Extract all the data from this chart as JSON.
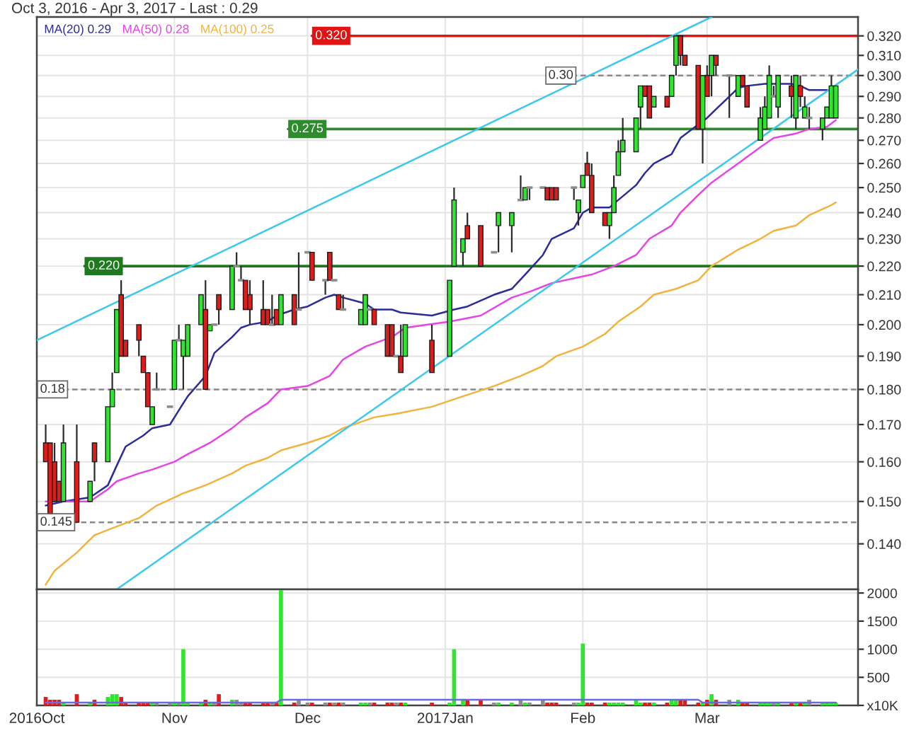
{
  "chart_data": [
    {
      "type": "candlestick",
      "title": "Oct 3, 2016 - Apr 3, 2017 - Last : 0.29",
      "x": [
        "2016-10-03",
        "2016-10-04",
        "2016-10-05",
        "2016-10-06",
        "2016-10-07",
        "2016-10-10",
        "2016-10-13",
        "2016-10-14",
        "2016-10-17",
        "2016-10-18",
        "2016-10-19",
        "2016-10-20",
        "2016-10-21",
        "2016-10-24",
        "2016-10-25",
        "2016-10-26",
        "2016-10-27",
        "2016-10-28",
        "2016-10-31",
        "2016-11-01",
        "2016-11-02",
        "2016-11-03",
        "2016-11-04",
        "2016-11-07",
        "2016-11-08",
        "2016-11-09",
        "2016-11-10",
        "2016-11-11",
        "2016-11-14",
        "2016-11-15",
        "2016-11-16",
        "2016-11-17",
        "2016-11-18",
        "2016-11-21",
        "2016-11-22",
        "2016-11-23",
        "2016-11-24",
        "2016-11-25",
        "2016-11-28",
        "2016-11-29",
        "2016-12-01",
        "2016-12-02",
        "2016-12-05",
        "2016-12-06",
        "2016-12-07",
        "2016-12-08",
        "2016-12-09",
        "2016-12-13",
        "2016-12-14",
        "2016-12-15",
        "2016-12-16",
        "2016-12-19",
        "2016-12-20",
        "2016-12-21",
        "2016-12-22",
        "2016-12-23",
        "2016-12-29",
        "2017-01-02",
        "2017-01-03",
        "2017-01-05",
        "2017-01-06",
        "2017-01-09",
        "2017-01-12",
        "2017-01-13",
        "2017-01-16",
        "2017-01-18",
        "2017-01-19",
        "2017-01-20",
        "2017-01-23",
        "2017-01-24",
        "2017-01-25",
        "2017-01-26",
        "2017-01-30",
        "2017-01-31",
        "2017-02-01",
        "2017-02-02",
        "2017-02-03",
        "2017-02-06",
        "2017-02-07",
        "2017-02-08",
        "2017-02-09",
        "2017-02-10",
        "2017-02-13",
        "2017-02-14",
        "2017-02-15",
        "2017-02-16",
        "2017-02-17",
        "2017-02-20",
        "2017-02-21",
        "2017-02-22",
        "2017-02-23",
        "2017-02-24",
        "2017-02-27",
        "2017-02-28",
        "2017-03-01",
        "2017-03-02",
        "2017-03-03",
        "2017-03-06",
        "2017-03-08",
        "2017-03-09",
        "2017-03-10",
        "2017-03-13",
        "2017-03-14",
        "2017-03-15",
        "2017-03-16",
        "2017-03-17",
        "2017-03-20",
        "2017-03-21",
        "2017-03-22",
        "2017-03-23",
        "2017-03-24",
        "2017-03-27",
        "2017-03-28",
        "2017-03-29",
        "2017-03-30"
      ],
      "ohlc": [
        [
          0.165,
          0.17,
          0.16,
          0.16
        ],
        [
          0.165,
          0.165,
          0.147,
          0.147
        ],
        [
          0.16,
          0.165,
          0.15,
          0.15
        ],
        [
          0.155,
          0.155,
          0.15,
          0.15
        ],
        [
          0.15,
          0.17,
          0.15,
          0.165
        ],
        [
          0.16,
          0.17,
          0.145,
          0.145
        ],
        [
          0.15,
          0.155,
          0.15,
          0.155
        ],
        [
          0.165,
          0.165,
          0.155,
          0.16
        ],
        [
          0.16,
          0.175,
          0.16,
          0.175
        ],
        [
          0.175,
          0.185,
          0.175,
          0.18
        ],
        [
          0.185,
          0.205,
          0.185,
          0.205
        ],
        [
          0.21,
          0.215,
          0.19,
          0.19
        ],
        [
          0.195,
          0.195,
          0.19,
          0.19
        ],
        [
          0.2,
          0.2,
          0.19,
          0.195
        ],
        [
          0.19,
          0.19,
          0.185,
          0.185
        ],
        [
          0.185,
          0.185,
          0.175,
          0.175
        ],
        [
          0.17,
          0.175,
          0.17,
          0.175
        ],
        [
          0.18,
          0.185,
          0.18,
          0.18
        ],
        [
          0.175,
          0.175,
          0.175,
          0.175
        ],
        [
          0.18,
          0.195,
          0.18,
          0.195
        ],
        [
          0.195,
          0.2,
          0.195,
          0.195
        ],
        [
          0.19,
          0.195,
          0.18,
          0.195
        ],
        [
          0.19,
          0.2,
          0.19,
          0.2
        ],
        [
          0.2,
          0.21,
          0.2,
          0.21
        ],
        [
          0.205,
          0.215,
          0.18,
          0.18
        ],
        [
          0.198,
          0.2,
          0.198,
          0.2
        ],
        [
          0.2,
          0.2,
          0.2,
          0.2
        ],
        [
          0.21,
          0.21,
          0.2,
          0.205
        ],
        [
          0.205,
          0.22,
          0.205,
          0.22
        ],
        [
          0.22,
          0.225,
          0.22,
          0.22
        ],
        [
          0.215,
          0.22,
          0.215,
          0.215
        ],
        [
          0.215,
          0.215,
          0.205,
          0.205
        ],
        [
          0.21,
          0.215,
          0.2,
          0.205
        ],
        [
          0.205,
          0.215,
          0.2,
          0.2
        ],
        [
          0.205,
          0.205,
          0.2,
          0.2
        ],
        [
          0.2,
          0.21,
          0.2,
          0.2
        ],
        [
          0.205,
          0.205,
          0.2,
          0.2
        ],
        [
          0.2,
          0.21,
          0.2,
          0.21
        ],
        [
          0.21,
          0.21,
          0.2,
          0.2
        ],
        [
          0.205,
          0.225,
          0.205,
          0.205
        ],
        [
          0.225,
          0.225,
          0.225,
          0.225
        ],
        [
          0.225,
          0.225,
          0.215,
          0.215
        ],
        [
          0.215,
          0.215,
          0.21,
          0.215
        ],
        [
          0.225,
          0.225,
          0.215,
          0.215
        ],
        [
          0.215,
          0.215,
          0.215,
          0.215
        ],
        [
          0.21,
          0.21,
          0.205,
          0.205
        ],
        [
          0.205,
          0.21,
          0.205,
          0.205
        ],
        [
          0.2,
          0.205,
          0.2,
          0.205
        ],
        [
          0.2,
          0.21,
          0.2,
          0.21
        ],
        [
          0.205,
          0.205,
          0.205,
          0.205
        ],
        [
          0.205,
          0.205,
          0.2,
          0.2
        ],
        [
          0.2,
          0.2,
          0.19,
          0.19
        ],
        [
          0.2,
          0.2,
          0.19,
          0.19
        ],
        [
          0.19,
          0.19,
          0.19,
          0.19
        ],
        [
          0.19,
          0.2,
          0.185,
          0.185
        ],
        [
          0.19,
          0.2,
          0.19,
          0.2
        ],
        [
          0.195,
          0.2,
          0.185,
          0.185
        ],
        [
          0.19,
          0.215,
          0.19,
          0.215
        ],
        [
          0.22,
          0.25,
          0.22,
          0.245
        ],
        [
          0.225,
          0.23,
          0.22,
          0.23
        ],
        [
          0.235,
          0.24,
          0.23,
          0.23
        ],
        [
          0.235,
          0.235,
          0.22,
          0.22
        ],
        [
          0.225,
          0.225,
          0.225,
          0.225
        ],
        [
          0.235,
          0.24,
          0.225,
          0.24
        ],
        [
          0.235,
          0.24,
          0.225,
          0.24
        ],
        [
          0.245,
          0.255,
          0.245,
          0.245
        ],
        [
          0.245,
          0.25,
          0.245,
          0.25
        ],
        [
          0.25,
          0.25,
          0.245,
          0.25
        ],
        [
          0.25,
          0.25,
          0.25,
          0.25
        ],
        [
          0.25,
          0.25,
          0.245,
          0.245
        ],
        [
          0.25,
          0.25,
          0.245,
          0.245
        ],
        [
          0.25,
          0.25,
          0.245,
          0.245
        ],
        [
          0.25,
          0.25,
          0.245,
          0.25
        ],
        [
          0.24,
          0.245,
          0.235,
          0.245
        ],
        [
          0.25,
          0.255,
          0.25,
          0.255
        ],
        [
          0.26,
          0.265,
          0.255,
          0.255
        ],
        [
          0.255,
          0.26,
          0.24,
          0.24
        ],
        [
          0.24,
          0.24,
          0.235,
          0.235
        ],
        [
          0.235,
          0.24,
          0.23,
          0.24
        ],
        [
          0.24,
          0.255,
          0.24,
          0.25
        ],
        [
          0.255,
          0.27,
          0.255,
          0.265
        ],
        [
          0.265,
          0.28,
          0.265,
          0.27
        ],
        [
          0.265,
          0.28,
          0.265,
          0.28
        ],
        [
          0.285,
          0.295,
          0.275,
          0.295
        ],
        [
          0.295,
          0.295,
          0.29,
          0.29
        ],
        [
          0.295,
          0.295,
          0.28,
          0.28
        ],
        [
          0.285,
          0.29,
          0.285,
          0.29
        ],
        [
          0.29,
          0.29,
          0.285,
          0.285
        ],
        [
          0.29,
          0.3,
          0.29,
          0.3
        ],
        [
          0.305,
          0.32,
          0.3,
          0.32
        ],
        [
          0.32,
          0.32,
          0.305,
          0.31
        ],
        [
          0.31,
          0.31,
          0.305,
          0.305
        ],
        [
          0.305,
          0.305,
          0.275,
          0.275
        ],
        [
          0.275,
          0.3,
          0.26,
          0.3
        ],
        [
          0.3,
          0.305,
          0.29,
          0.29
        ],
        [
          0.3,
          0.31,
          0.29,
          0.31
        ],
        [
          0.31,
          0.31,
          0.3,
          0.305
        ],
        [
          0.3,
          0.3,
          0.28,
          0.3
        ],
        [
          0.29,
          0.3,
          0.29,
          0.3
        ],
        [
          0.3,
          0.3,
          0.295,
          0.295
        ],
        [
          0.295,
          0.295,
          0.285,
          0.285
        ],
        [
          0.27,
          0.285,
          0.27,
          0.28
        ],
        [
          0.275,
          0.29,
          0.275,
          0.285
        ],
        [
          0.28,
          0.305,
          0.28,
          0.3
        ],
        [
          0.29,
          0.295,
          0.29,
          0.29
        ],
        [
          0.285,
          0.3,
          0.28,
          0.3
        ],
        [
          0.295,
          0.3,
          0.28,
          0.29
        ],
        [
          0.28,
          0.3,
          0.275,
          0.3
        ],
        [
          0.295,
          0.3,
          0.285,
          0.29
        ],
        [
          0.28,
          0.29,
          0.28,
          0.285
        ],
        [
          0.28,
          0.285,
          0.275,
          0.28
        ],
        [
          0.275,
          0.28,
          0.27,
          0.28
        ],
        [
          0.28,
          0.285,
          0.28,
          0.285
        ],
        [
          0.28,
          0.3,
          0.28,
          0.295
        ],
        [
          0.28,
          0.295,
          0.28,
          0.295
        ]
      ],
      "colors": [
        "#dd1c1c",
        "#dd1c1c",
        "#dd1c1c",
        "#dd1c1c",
        "#2ee62e",
        "#dd1c1c",
        "#2ee62e",
        "#dd1c1c",
        "#2ee62e",
        "#2ee62e",
        "#2ee62e",
        "#dd1c1c",
        "#dd1c1c",
        "#dd1c1c",
        "#dd1c1c",
        "#dd1c1c",
        "#2ee62e",
        "#8c8c8c",
        "#8c8c8c",
        "#2ee62e",
        "#8c8c8c",
        "#2ee62e",
        "#2ee62e",
        "#2ee62e",
        "#dd1c1c",
        "#2ee62e",
        "#8c8c8c",
        "#dd1c1c",
        "#2ee62e",
        "#8c8c8c",
        "#8c8c8c",
        "#dd1c1c",
        "#dd1c1c",
        "#dd1c1c",
        "#dd1c1c",
        "#8c8c8c",
        "#dd1c1c",
        "#2ee62e",
        "#dd1c1c",
        "#8c8c8c",
        "#8c8c8c",
        "#dd1c1c",
        "#8c8c8c",
        "#dd1c1c",
        "#8c8c8c",
        "#dd1c1c",
        "#8c8c8c",
        "#2ee62e",
        "#2ee62e",
        "#8c8c8c",
        "#dd1c1c",
        "#dd1c1c",
        "#dd1c1c",
        "#8c8c8c",
        "#dd1c1c",
        "#2ee62e",
        "#dd1c1c",
        "#2ee62e",
        "#2ee62e",
        "#2ee62e",
        "#dd1c1c",
        "#dd1c1c",
        "#8c8c8c",
        "#2ee62e",
        "#2ee62e",
        "#8c8c8c",
        "#2ee62e",
        "#8c8c8c",
        "#8c8c8c",
        "#dd1c1c",
        "#dd1c1c",
        "#dd1c1c",
        "#8c8c8c",
        "#2ee62e",
        "#2ee62e",
        "#dd1c1c",
        "#dd1c1c",
        "#dd1c1c",
        "#2ee62e",
        "#2ee62e",
        "#2ee62e",
        "#2ee62e",
        "#2ee62e",
        "#2ee62e",
        "#dd1c1c",
        "#dd1c1c",
        "#2ee62e",
        "#dd1c1c",
        "#2ee62e",
        "#2ee62e",
        "#dd1c1c",
        "#dd1c1c",
        "#dd1c1c",
        "#2ee62e",
        "#dd1c1c",
        "#2ee62e",
        "#dd1c1c",
        "#8c8c8c",
        "#2ee62e",
        "#dd1c1c",
        "#dd1c1c",
        "#2ee62e",
        "#2ee62e",
        "#2ee62e",
        "#8c8c8c",
        "#2ee62e",
        "#dd1c1c",
        "#2ee62e",
        "#dd1c1c",
        "#2ee62e",
        "#8c8c8c",
        "#2ee62e",
        "#2ee62e",
        "#2ee62e",
        "#2ee62e"
      ],
      "series": [
        {
          "type": "line",
          "name": "MA(20) 0.29",
          "color": "#2b2b9a",
          "x": [
            "2016-10-03",
            "2016-10-07",
            "2016-10-13",
            "2016-10-17",
            "2016-10-19",
            "2016-10-21",
            "2016-10-25",
            "2016-10-27",
            "2016-10-31",
            "2016-11-02",
            "2016-11-04",
            "2016-11-08",
            "2016-11-10",
            "2016-11-14",
            "2016-11-16",
            "2016-11-18",
            "2016-11-22",
            "2016-11-24",
            "2016-11-28",
            "2016-12-01",
            "2016-12-05",
            "2016-12-07",
            "2016-12-09",
            "2016-12-14",
            "2016-12-16",
            "2016-12-20",
            "2016-12-22",
            "2016-12-29",
            "2017-01-03",
            "2017-01-06",
            "2017-01-12",
            "2017-01-16",
            "2017-01-19",
            "2017-01-23",
            "2017-01-25",
            "2017-01-30",
            "2017-02-01",
            "2017-02-03",
            "2017-02-07",
            "2017-02-09",
            "2017-02-13",
            "2017-02-15",
            "2017-02-17",
            "2017-02-21",
            "2017-02-23",
            "2017-02-27",
            "2017-03-01",
            "2017-03-03",
            "2017-03-08",
            "2017-03-10",
            "2017-03-14",
            "2017-03-16",
            "2017-03-20",
            "2017-03-22",
            "2017-03-24",
            "2017-03-28"
          ],
          "values": [
            0.149,
            0.15,
            0.151,
            0.154,
            0.159,
            0.164,
            0.167,
            0.169,
            0.17,
            0.174,
            0.178,
            0.184,
            0.191,
            0.196,
            0.199,
            0.2,
            0.201,
            0.203,
            0.205,
            0.206,
            0.209,
            0.21,
            0.209,
            0.207,
            0.205,
            0.205,
            0.204,
            0.203,
            0.205,
            0.206,
            0.21,
            0.212,
            0.217,
            0.224,
            0.23,
            0.234,
            0.24,
            0.242,
            0.242,
            0.245,
            0.251,
            0.256,
            0.26,
            0.264,
            0.271,
            0.277,
            0.28,
            0.284,
            0.294,
            0.295,
            0.296,
            0.296,
            0.296,
            0.295,
            0.293,
            0.293
          ]
        },
        {
          "type": "line",
          "name": "MA(50) 0.28",
          "color": "#e545e5",
          "x": [
            "2016-10-03",
            "2016-10-13",
            "2016-10-17",
            "2016-10-19",
            "2016-10-24",
            "2016-10-27",
            "2016-11-01",
            "2016-11-04",
            "2016-11-09",
            "2016-11-14",
            "2016-11-17",
            "2016-11-22",
            "2016-11-25",
            "2016-12-01",
            "2016-12-06",
            "2016-12-09",
            "2016-12-14",
            "2016-12-20",
            "2016-12-23",
            "2017-01-02",
            "2017-01-09",
            "2017-01-16",
            "2017-01-20",
            "2017-01-25",
            "2017-01-31",
            "2017-02-03",
            "2017-02-08",
            "2017-02-13",
            "2017-02-16",
            "2017-02-21",
            "2017-02-23",
            "2017-02-27",
            "2017-03-02",
            "2017-03-08",
            "2017-03-13",
            "2017-03-16",
            "2017-03-21",
            "2017-03-24",
            "2017-03-28",
            "2017-03-30"
          ],
          "values": [
            0.15,
            0.15,
            0.153,
            0.155,
            0.157,
            0.158,
            0.16,
            0.162,
            0.165,
            0.169,
            0.172,
            0.176,
            0.18,
            0.181,
            0.184,
            0.189,
            0.193,
            0.196,
            0.199,
            0.201,
            0.203,
            0.209,
            0.211,
            0.214,
            0.216,
            0.217,
            0.22,
            0.224,
            0.23,
            0.235,
            0.24,
            0.247,
            0.252,
            0.26,
            0.267,
            0.271,
            0.273,
            0.275,
            0.276,
            0.279
          ]
        },
        {
          "type": "line",
          "name": "MA(100) 0.25",
          "color": "#f2b33d",
          "x": [
            "2016-10-03",
            "2016-10-05",
            "2016-10-10",
            "2016-10-14",
            "2016-10-19",
            "2016-10-24",
            "2016-10-28",
            "2016-11-03",
            "2016-11-08",
            "2016-11-14",
            "2016-11-17",
            "2016-11-22",
            "2016-11-25",
            "2016-12-01",
            "2016-12-06",
            "2016-12-09",
            "2016-12-16",
            "2016-12-21",
            "2016-12-29",
            "2017-01-05",
            "2017-01-12",
            "2017-01-18",
            "2017-01-23",
            "2017-01-26",
            "2017-02-01",
            "2017-02-06",
            "2017-02-09",
            "2017-02-14",
            "2017-02-17",
            "2017-02-22",
            "2017-02-27",
            "2017-03-02",
            "2017-03-08",
            "2017-03-13",
            "2017-03-16",
            "2017-03-21",
            "2017-03-24",
            "2017-03-29",
            "2017-03-30"
          ],
          "values": [
            0.131,
            0.134,
            0.138,
            0.142,
            0.144,
            0.146,
            0.149,
            0.152,
            0.154,
            0.157,
            0.159,
            0.161,
            0.163,
            0.165,
            0.167,
            0.169,
            0.172,
            0.173,
            0.175,
            0.178,
            0.181,
            0.184,
            0.187,
            0.19,
            0.193,
            0.197,
            0.201,
            0.206,
            0.21,
            0.212,
            0.215,
            0.22,
            0.226,
            0.23,
            0.233,
            0.235,
            0.239,
            0.243,
            0.244
          ]
        },
        {
          "type": "line",
          "color": "#3cc8ec",
          "x": [
            "2016-10-01",
            "2017-03-02"
          ],
          "values": [
            0.195,
            0.33
          ]
        },
        {
          "type": "line",
          "color": "#3cc8ec",
          "x": [
            "2016-10-19",
            "2017-04-04"
          ],
          "values": [
            0.13,
            0.303
          ]
        }
      ],
      "ref_lines": [
        {
          "axis": "y",
          "value": 0.32,
          "label": "0.320",
          "color": "#e01414",
          "line_style": "solid"
        },
        {
          "axis": "y",
          "value": 0.3,
          "label": "0.30",
          "color": "#8a8a8a",
          "line_style": "dashed"
        },
        {
          "axis": "y",
          "value": 0.275,
          "label": "0.275",
          "color": "#2e8b2e",
          "line_style": "solid"
        },
        {
          "axis": "y",
          "value": 0.22,
          "label": "0.220",
          "color": "#1f7a1f",
          "line_style": "solid"
        },
        {
          "axis": "y",
          "value": 0.18,
          "label": "0.18",
          "color": "#8a8a8a",
          "line_style": "dashed"
        },
        {
          "axis": "y",
          "value": 0.145,
          "label": "0.145",
          "color": "#8a8a8a",
          "line_style": "dashed"
        }
      ],
      "xlim": [
        "2016-10-01",
        "2017-04-04"
      ],
      "xticks": [
        {
          "value": "2016-10-01",
          "label": null
        },
        {
          "value": "2016-11-01",
          "label": null
        },
        {
          "value": "2016-12-01",
          "label": null
        },
        {
          "value": "2017-01-01",
          "label": null
        },
        {
          "value": "2017-02-01",
          "label": null
        },
        {
          "value": "2017-03-01",
          "label": null
        }
      ],
      "log": true,
      "ylim": [
        0.13,
        0.33
      ],
      "yticks": [
        {
          "value": 0.14,
          "label": "0.140"
        },
        {
          "value": 0.15,
          "label": "0.150"
        },
        {
          "value": 0.16,
          "label": "0.160"
        },
        {
          "value": 0.17,
          "label": "0.170"
        },
        {
          "value": 0.18,
          "label": "0.180"
        },
        {
          "value": 0.19,
          "label": "0.190"
        },
        {
          "value": 0.2,
          "label": "0.200"
        },
        {
          "value": 0.21,
          "label": "0.210"
        },
        {
          "value": 0.22,
          "label": "0.220"
        },
        {
          "value": 0.23,
          "label": "0.230"
        },
        {
          "value": 0.24,
          "label": "0.240"
        },
        {
          "value": 0.25,
          "label": "0.250"
        },
        {
          "value": 0.26,
          "label": "0.260"
        },
        {
          "value": 0.27,
          "label": "0.270"
        },
        {
          "value": 0.28,
          "label": "0.280"
        },
        {
          "value": 0.29,
          "label": "0.290"
        },
        {
          "value": 0.3,
          "label": "0.300"
        },
        {
          "value": 0.31,
          "label": "0.310"
        },
        {
          "value": 0.32,
          "label": "0.320"
        }
      ],
      "grid": true,
      "legend": "top left",
      "tick_labels": "y"
    },
    {
      "type": "bar",
      "x": [
        "2016-10-03",
        "2016-10-04",
        "2016-10-05",
        "2016-10-06",
        "2016-10-07",
        "2016-10-10",
        "2016-10-13",
        "2016-10-14",
        "2016-10-17",
        "2016-10-18",
        "2016-10-19",
        "2016-10-20",
        "2016-10-21",
        "2016-10-24",
        "2016-10-25",
        "2016-10-26",
        "2016-10-27",
        "2016-10-28",
        "2016-10-31",
        "2016-11-01",
        "2016-11-02",
        "2016-11-03",
        "2016-11-04",
        "2016-11-07",
        "2016-11-08",
        "2016-11-09",
        "2016-11-10",
        "2016-11-11",
        "2016-11-14",
        "2016-11-15",
        "2016-11-16",
        "2016-11-17",
        "2016-11-18",
        "2016-11-21",
        "2016-11-22",
        "2016-11-23",
        "2016-11-24",
        "2016-11-25",
        "2016-11-28",
        "2016-11-29",
        "2016-12-01",
        "2016-12-02",
        "2016-12-05",
        "2016-12-06",
        "2016-12-07",
        "2016-12-08",
        "2016-12-09",
        "2016-12-13",
        "2016-12-14",
        "2016-12-15",
        "2016-12-16",
        "2016-12-19",
        "2016-12-20",
        "2016-12-21",
        "2016-12-22",
        "2016-12-23",
        "2016-12-29",
        "2017-01-02",
        "2017-01-03",
        "2017-01-05",
        "2017-01-06",
        "2017-01-09",
        "2017-01-12",
        "2017-01-13",
        "2017-01-16",
        "2017-01-18",
        "2017-01-19",
        "2017-01-20",
        "2017-01-23",
        "2017-01-24",
        "2017-01-25",
        "2017-01-26",
        "2017-01-30",
        "2017-01-31",
        "2017-02-01",
        "2017-02-02",
        "2017-02-03",
        "2017-02-06",
        "2017-02-07",
        "2017-02-08",
        "2017-02-09",
        "2017-02-10",
        "2017-02-13",
        "2017-02-14",
        "2017-02-15",
        "2017-02-16",
        "2017-02-17",
        "2017-02-20",
        "2017-02-21",
        "2017-02-22",
        "2017-02-23",
        "2017-02-24",
        "2017-02-27",
        "2017-02-28",
        "2017-03-01",
        "2017-03-02",
        "2017-03-03",
        "2017-03-06",
        "2017-03-08",
        "2017-03-09",
        "2017-03-10",
        "2017-03-13",
        "2017-03-14",
        "2017-03-15",
        "2017-03-16",
        "2017-03-17",
        "2017-03-20",
        "2017-03-21",
        "2017-03-22",
        "2017-03-23",
        "2017-03-24",
        "2017-03-27",
        "2017-03-28",
        "2017-03-29",
        "2017-03-30"
      ],
      "values": [
        150,
        100,
        100,
        100,
        50,
        200,
        50,
        100,
        150,
        200,
        200,
        150,
        50,
        50,
        50,
        50,
        50,
        50,
        50,
        50,
        50,
        1000,
        50,
        50,
        100,
        50,
        50,
        200,
        100,
        100,
        50,
        50,
        50,
        50,
        50,
        50,
        50,
        2050,
        50,
        100,
        50,
        50,
        50,
        50,
        50,
        50,
        50,
        50,
        50,
        50,
        50,
        50,
        50,
        50,
        50,
        50,
        50,
        50,
        1000,
        100,
        100,
        100,
        50,
        50,
        50,
        100,
        50,
        50,
        100,
        50,
        50,
        50,
        50,
        50,
        1100,
        50,
        50,
        50,
        50,
        50,
        50,
        50,
        100,
        50,
        50,
        50,
        50,
        50,
        100,
        100,
        100,
        100,
        50,
        50,
        100,
        200,
        100,
        100,
        100,
        50,
        50,
        50,
        50,
        50,
        50,
        50,
        50,
        50,
        50,
        50,
        100,
        50,
        50,
        50,
        50
      ],
      "colors": [
        "#dd1c1c",
        "#dd1c1c",
        "#dd1c1c",
        "#dd1c1c",
        "#2ee62e",
        "#dd1c1c",
        "#2ee62e",
        "#dd1c1c",
        "#2ee62e",
        "#2ee62e",
        "#2ee62e",
        "#dd1c1c",
        "#dd1c1c",
        "#dd1c1c",
        "#dd1c1c",
        "#dd1c1c",
        "#2ee62e",
        "#8c8c8c",
        "#8c8c8c",
        "#2ee62e",
        "#8c8c8c",
        "#2ee62e",
        "#2ee62e",
        "#2ee62e",
        "#dd1c1c",
        "#2ee62e",
        "#8c8c8c",
        "#dd1c1c",
        "#2ee62e",
        "#8c8c8c",
        "#8c8c8c",
        "#dd1c1c",
        "#dd1c1c",
        "#dd1c1c",
        "#dd1c1c",
        "#8c8c8c",
        "#dd1c1c",
        "#2ee62e",
        "#dd1c1c",
        "#8c8c8c",
        "#8c8c8c",
        "#dd1c1c",
        "#8c8c8c",
        "#dd1c1c",
        "#8c8c8c",
        "#dd1c1c",
        "#8c8c8c",
        "#2ee62e",
        "#2ee62e",
        "#8c8c8c",
        "#dd1c1c",
        "#dd1c1c",
        "#dd1c1c",
        "#8c8c8c",
        "#dd1c1c",
        "#2ee62e",
        "#dd1c1c",
        "#2ee62e",
        "#2ee62e",
        "#2ee62e",
        "#dd1c1c",
        "#dd1c1c",
        "#8c8c8c",
        "#2ee62e",
        "#2ee62e",
        "#8c8c8c",
        "#2ee62e",
        "#8c8c8c",
        "#8c8c8c",
        "#dd1c1c",
        "#dd1c1c",
        "#dd1c1c",
        "#8c8c8c",
        "#2ee62e",
        "#2ee62e",
        "#dd1c1c",
        "#dd1c1c",
        "#dd1c1c",
        "#2ee62e",
        "#2ee62e",
        "#2ee62e",
        "#2ee62e",
        "#2ee62e",
        "#2ee62e",
        "#dd1c1c",
        "#dd1c1c",
        "#2ee62e",
        "#dd1c1c",
        "#2ee62e",
        "#2ee62e",
        "#dd1c1c",
        "#dd1c1c",
        "#dd1c1c",
        "#2ee62e",
        "#dd1c1c",
        "#2ee62e",
        "#dd1c1c",
        "#8c8c8c",
        "#2ee62e",
        "#dd1c1c",
        "#dd1c1c",
        "#2ee62e",
        "#2ee62e",
        "#2ee62e",
        "#8c8c8c",
        "#2ee62e",
        "#dd1c1c",
        "#2ee62e",
        "#dd1c1c",
        "#2ee62e",
        "#8c8c8c",
        "#2ee62e",
        "#2ee62e",
        "#2ee62e",
        "#2ee62e"
      ],
      "series": [
        {
          "type": "line",
          "color": "#6a6ad8",
          "x": [
            "2016-10-03",
            "2016-11-24",
            "2016-11-25",
            "2017-02-27",
            "2017-02-28",
            "2017-03-30"
          ],
          "values": [
            50,
            50,
            100,
            100,
            50,
            50
          ]
        }
      ],
      "xlim": [
        "2016-10-01",
        "2017-04-04"
      ],
      "xticks": [
        {
          "value": "2016-10-01",
          "label": "2016Oct"
        },
        {
          "value": "2016-11-01",
          "label": "Nov"
        },
        {
          "value": "2016-12-01",
          "label": "Dec"
        },
        {
          "value": "2017-01-01",
          "label": "2017Jan"
        },
        {
          "value": "2017-02-01",
          "label": "Feb"
        },
        {
          "value": "2017-03-01",
          "label": "Mar"
        }
      ],
      "ylim": [
        0,
        2065
      ],
      "yticks": [
        {
          "value": 0,
          "label": "x10K"
        },
        500,
        1000,
        1500,
        2000
      ],
      "grid": true
    }
  ]
}
